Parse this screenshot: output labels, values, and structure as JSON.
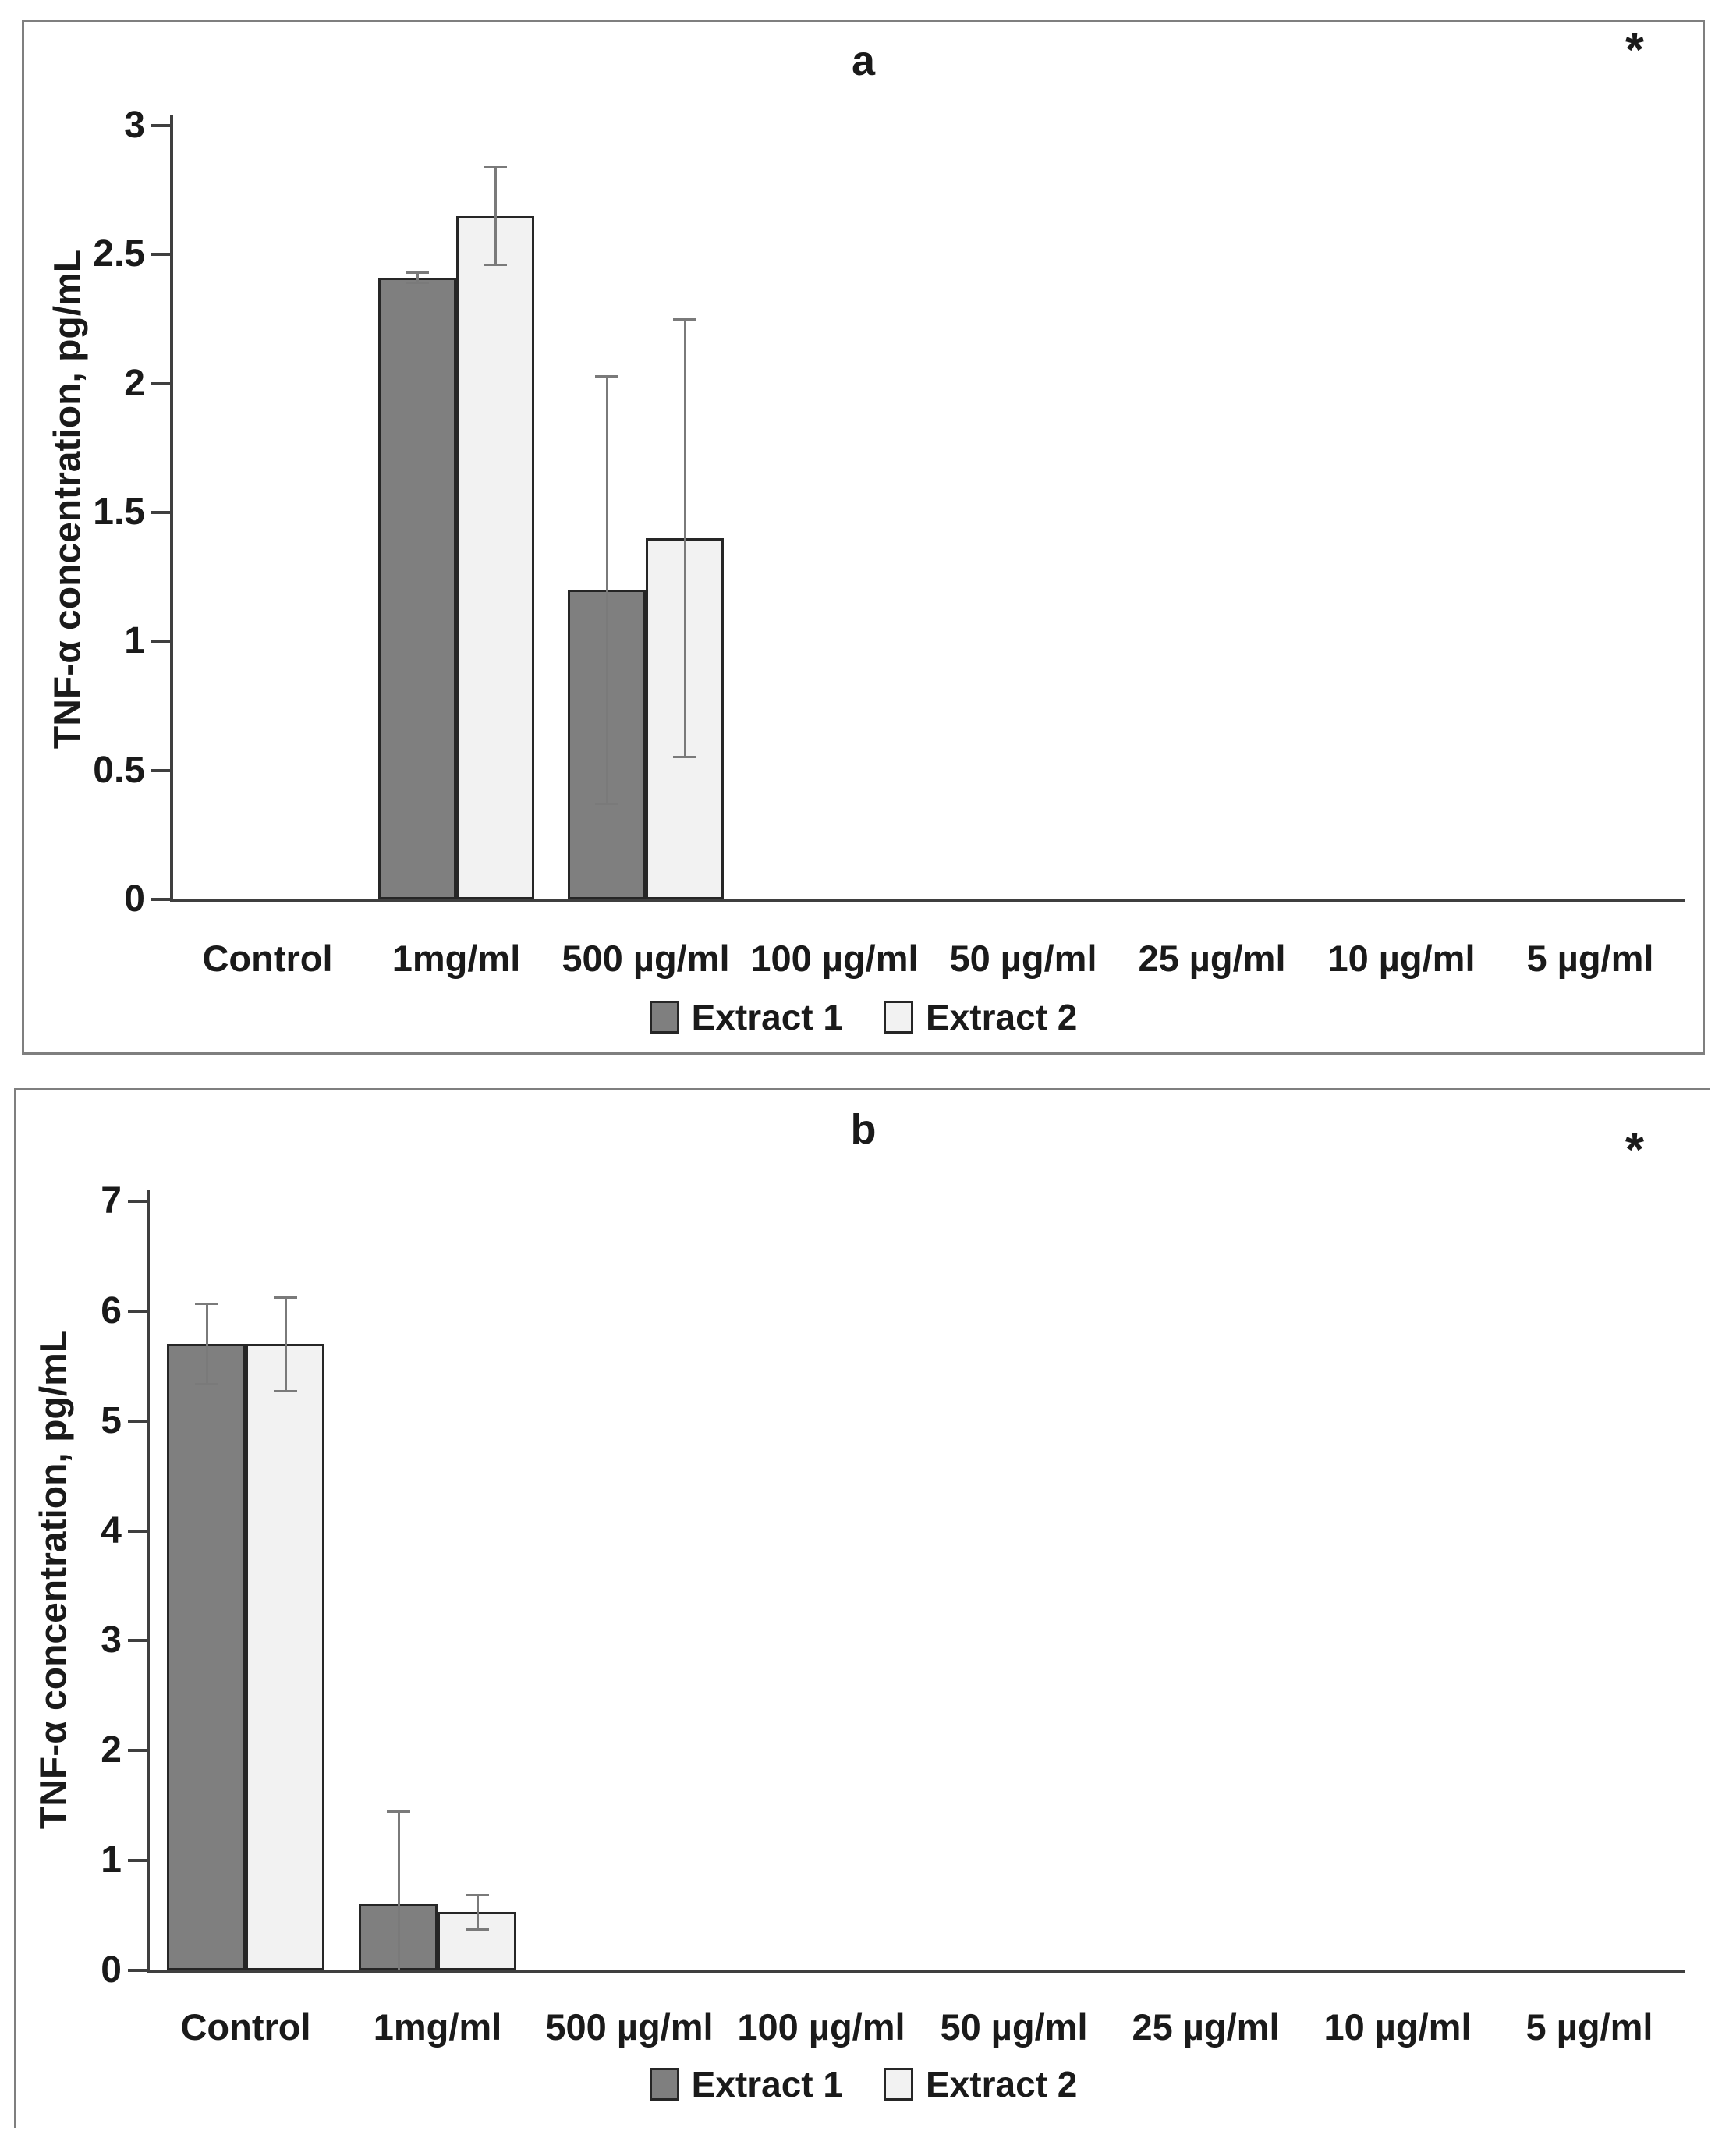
{
  "style": {
    "background": "#ffffff",
    "panel_border": "#7f7f7f",
    "axis_color": "#3f3f3f",
    "bar_border": "#262626",
    "error_color": "#7a7a7a",
    "text_color": "#1a1a1a"
  },
  "chart_data": [
    {
      "id": "a",
      "type": "bar",
      "title": "a",
      "significance_marker": "*",
      "ylabel": "TNF-α concentration, pg/mL",
      "xlabel": "",
      "categories": [
        "Control",
        "1mg/ml",
        "500 µg/ml",
        "100 µg/ml",
        "50 µg/ml",
        "25 µg/ml",
        "10 µg/ml",
        "5 µg/ml"
      ],
      "series": [
        {
          "name": "Extract 1",
          "color": "#7f7f7f",
          "values": [
            0,
            2.41,
            1.2,
            0,
            0,
            0,
            0,
            0
          ],
          "errors": [
            0,
            0.02,
            0.83,
            0,
            0,
            0,
            0,
            0
          ]
        },
        {
          "name": "Extract 2",
          "color": "#f2f2f2",
          "values": [
            0,
            2.65,
            1.4,
            0,
            0,
            0,
            0,
            0
          ],
          "errors": [
            0,
            0.19,
            0.85,
            0,
            0,
            0,
            0,
            0
          ]
        }
      ],
      "ylim": [
        0,
        3
      ],
      "yticks": [
        0,
        0.5,
        1,
        1.5,
        2,
        2.5,
        3
      ],
      "ytick_labels": [
        "0",
        "0.5",
        "1",
        "1.5",
        "2",
        "2.5",
        "3"
      ],
      "grid": false,
      "legend_position": "bottom"
    },
    {
      "id": "b",
      "type": "bar",
      "title": "b",
      "significance_marker": "*",
      "ylabel": "TNF-α concentration, pg/mL",
      "xlabel": "",
      "categories": [
        "Control",
        "1mg/ml",
        "500 µg/ml",
        "100 µg/ml",
        "50 µg/ml",
        "25 µg/ml",
        "10 µg/ml",
        "5 µg/ml"
      ],
      "series": [
        {
          "name": "Extract 1",
          "color": "#7f7f7f",
          "values": [
            5.7,
            0.6,
            0,
            0,
            0,
            0,
            0,
            0
          ],
          "errors": [
            0.37,
            0.85,
            0,
            0,
            0,
            0,
            0,
            0
          ]
        },
        {
          "name": "Extract 2",
          "color": "#f2f2f2",
          "values": [
            5.7,
            0.53,
            0,
            0,
            0,
            0,
            0,
            0
          ],
          "errors": [
            0.43,
            0.16,
            0,
            0,
            0,
            0,
            0,
            0
          ]
        }
      ],
      "ylim": [
        0,
        7
      ],
      "yticks": [
        0,
        1,
        2,
        3,
        4,
        5,
        6,
        7
      ],
      "ytick_labels": [
        "0",
        "1",
        "2",
        "3",
        "4",
        "5",
        "6",
        "7"
      ],
      "grid": false,
      "legend_position": "bottom"
    }
  ]
}
